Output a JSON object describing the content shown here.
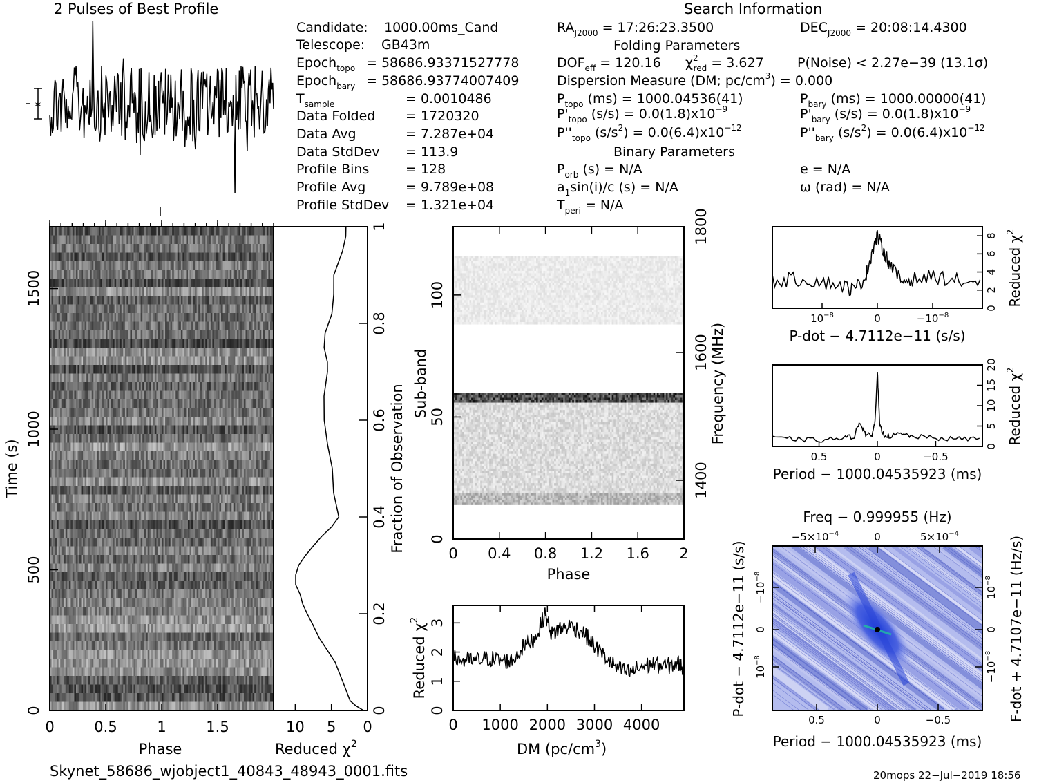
{
  "profile_panel": {
    "title": "2 Pulses of Best Profile"
  },
  "search_info": {
    "title": "Search Information",
    "folding_title": "Folding Parameters",
    "binary_title": "Binary Parameters"
  },
  "candidate_info": [
    {
      "label": "Candidate:",
      "value": "1000.00ms_Cand"
    },
    {
      "label": "Telescope:",
      "value": "GB43m"
    },
    {
      "label": "Epoch",
      "sub": "topo",
      "value": "= 58686.93371527778"
    },
    {
      "label": "Epoch",
      "sub": "bary",
      "value": "= 58686.93774007409"
    },
    {
      "label": "T",
      "sub": "sample",
      "value": "= 0.0010486"
    },
    {
      "label": "Data Folded",
      "value": "= 1720320"
    },
    {
      "label": "Data Avg",
      "value": "= 7.287e+04"
    },
    {
      "label": "Data StdDev",
      "value": "= 113.9"
    },
    {
      "label": "Profile Bins",
      "value": "= 128"
    },
    {
      "label": "Profile Avg",
      "value": "= 9.789e+08"
    },
    {
      "label": "Profile StdDev",
      "value": "= 1.321e+04"
    }
  ],
  "search_values": {
    "ra_label": "RA",
    "ra_sub": "J2000",
    "ra_value": "= 17:26:23.3500",
    "dec_label": "DEC",
    "dec_sub": "J2000",
    "dec_value": "= 20:08:14.4300",
    "dof_label": "DOF",
    "dof_sub": "eff",
    "dof_value": "= 120.16",
    "chi_label": "χ",
    "chi_sup": "2",
    "chi_sub": "red",
    "chi_value": "= 3.627",
    "pnoise": "P(Noise) < 2.27e−39   (13.1σ)",
    "dm_text": "Dispersion Measure (DM; pc/cm",
    "dm_sup": "3",
    "dm_value": ") = 0.000",
    "ptopo_label": "P",
    "ptopo_sub": "topo",
    "ptopo_value": "(ms) =  1000.04536(41)",
    "pbary_label": "P",
    "pbary_sub": "bary",
    "pbary_value": "(ms) =  1000.00000(41)",
    "pdtopo_label": "P'",
    "pdtopo_sub": "topo",
    "pdtopo_value": "(s/s) = 0.0(1.8)x10",
    "pdtopo_exp": "−9",
    "pdbary_label": "P'",
    "pdbary_sub": "bary",
    "pdbary_value": "(s/s) = 0.0(1.8)x10",
    "pdbary_exp": "−9",
    "pddtopo_label": "P''",
    "pddtopo_sub": "topo",
    "pddtopo_value": "(s/s",
    "pddtopo_sup": "2",
    "pddtopo_tail": ") = 0.0(6.4)x10",
    "pddtopo_exp": "−12",
    "pddbary_label": "P''",
    "pddbary_sub": "bary",
    "pddbary_value": "(s/s",
    "pddbary_sup": "2",
    "pddbary_tail": ") = 0.0(6.4)x10",
    "pddbary_exp": "−12",
    "porb_label": "P",
    "porb_sub": "orb",
    "porb_value": "(s) = N/A",
    "e_text": "e = N/A",
    "a1_text_a": "a",
    "a1_sub": "1",
    "a1_text_b": "sin(i)/c (s) = N/A",
    "omega_text": "ω (rad) = N/A",
    "tperi_label": "T",
    "tperi_sub": "peri",
    "tperi_value": "= N/A"
  },
  "time_phase": {
    "xlabel": "Phase",
    "ylabel": "Time (s)",
    "xticks": [
      "0",
      "0.5",
      "1",
      "1.5"
    ],
    "yticks": [
      "0",
      "500",
      "1000",
      "1500"
    ]
  },
  "chi_vs_time": {
    "xlabel": "Reduced χ",
    "xlabel_sup": "2",
    "xticks": [
      "10",
      "5",
      "0"
    ],
    "right_label": "Fraction of Observation",
    "right_ticks": [
      "0",
      "0.2",
      "0.4",
      "0.6",
      "0.8",
      "1"
    ]
  },
  "subband": {
    "xlabel": "Phase",
    "ylabel": "Sub-band",
    "right_label": "Frequency (MHz)",
    "xticks": [
      "0",
      "0.4",
      "0.8",
      "1.2",
      "1.6",
      "2"
    ],
    "yticks": [
      "0",
      "50",
      "100"
    ],
    "right_ticks": [
      "1400",
      "1600",
      "1800"
    ]
  },
  "dm_panel": {
    "xlabel": "DM (pc/cm",
    "xlabel_sup": "3",
    "xlabel_tail": ")",
    "ylabel": "Reduced χ",
    "ylabel_sup": "2",
    "xticks": [
      "0",
      "1000",
      "2000",
      "3000",
      "4000"
    ],
    "yticks": [
      "0",
      "1",
      "2",
      "3"
    ]
  },
  "pdot_panel": {
    "xlabel": "P-dot − 4.7112e−11 (s/s)",
    "ylabel": "Reduced χ",
    "ylabel_sup": "2",
    "xticks": [
      "10",
      "0",
      "−10"
    ],
    "xtick_exp": "−8",
    "yticks": [
      "0",
      "2",
      "4",
      "6",
      "8"
    ]
  },
  "period_panel": {
    "xlabel": "Period − 1000.04535923 (ms)",
    "ylabel": "Reduced χ",
    "ylabel_sup": "2",
    "xticks": [
      "0.5",
      "0",
      "−0.5"
    ],
    "yticks": [
      "0",
      "5",
      "10",
      "15",
      "20"
    ]
  },
  "ppdot_panel": {
    "top_label": "Freq − 0.999955 (Hz)",
    "top_ticks": [
      "−5×10",
      "0",
      "5×10"
    ],
    "top_exp": "−4",
    "xlabel": "Period − 1000.04535923 (ms)",
    "xticks": [
      "0.5",
      "0",
      "−0.5"
    ],
    "ylabel": "P-dot − 4.7112e−11 (s/s)",
    "right_label": "F-dot + 4.7107e−11 (Hz/s)",
    "yticks": [
      "10",
      "0",
      "−10"
    ],
    "ytick_exp": "−8"
  },
  "footer": {
    "filename": "Skynet_58686_wjobject1_40843_48943_0001.fits",
    "stamp": "20mops  22−Jul−2019 18:56"
  },
  "chart_data": [
    {
      "type": "heatmap",
      "title": "",
      "xlabel": "Phase",
      "ylabel": "Time (s)",
      "xlim": [
        0,
        2
      ],
      "ylim": [
        0,
        1720
      ],
      "dark_rows_time_s": [
        480,
        1450
      ],
      "colormap": "grayscale"
    },
    {
      "type": "line",
      "xlabel": "Reduced χ2",
      "ylabel": "Fraction of Observation",
      "xlim": [
        13,
        0
      ],
      "ylim": [
        0,
        1
      ],
      "x": [
        0.5,
        1.5,
        2.5,
        3.0,
        4.5,
        6.5,
        7.5,
        8.5,
        9.0,
        9.5,
        9.8,
        10.0,
        9.6,
        8.5,
        7.5,
        6.5,
        5.0,
        4.0,
        4.5,
        5.0,
        5.5,
        5.8,
        6.0,
        5.5,
        5.5,
        6.0,
        6.0,
        5.0,
        4.5,
        4.5,
        3.5,
        3.0,
        3.0
      ],
      "y": [
        0.0,
        0.01,
        0.02,
        0.05,
        0.1,
        0.15,
        0.18,
        0.2,
        0.22,
        0.24,
        0.26,
        0.28,
        0.3,
        0.32,
        0.34,
        0.36,
        0.38,
        0.4,
        0.45,
        0.5,
        0.55,
        0.6,
        0.65,
        0.7,
        0.72,
        0.75,
        0.78,
        0.82,
        0.86,
        0.9,
        0.95,
        0.98,
        1.0
      ]
    },
    {
      "type": "heatmap",
      "xlabel": "Phase",
      "ylabel": "Sub-band",
      "xlim": [
        0,
        2
      ],
      "ylim": [
        0,
        128
      ],
      "right_axis": {
        "label": "Frequency (MHz)",
        "ticks": [
          1400,
          1600,
          1800
        ]
      },
      "populated_subbands": [
        [
          14,
          59
        ],
        [
          88,
          115
        ]
      ],
      "colormap": "grayscale"
    },
    {
      "type": "line",
      "xlabel": "DM (pc/cm3)",
      "ylabel": "Reduced χ2",
      "xlim": [
        0,
        4900
      ],
      "ylim": [
        0,
        3.6
      ],
      "x": [
        0,
        250,
        500,
        750,
        1000,
        1250,
        1500,
        1750,
        1950,
        2100,
        2250,
        2500,
        2750,
        3000,
        3250,
        3500,
        3750,
        4000,
        4250,
        4500,
        4750,
        4900
      ],
      "y": [
        1.8,
        1.7,
        1.7,
        1.8,
        1.7,
        1.7,
        2.2,
        2.5,
        3.3,
        2.6,
        2.8,
        2.9,
        2.7,
        2.2,
        1.8,
        1.4,
        1.3,
        1.5,
        1.6,
        1.5,
        1.6,
        1.5
      ]
    },
    {
      "type": "line",
      "xlabel": "P-dot − 4.7112e−11 (s/s)",
      "ylabel": "Reduced χ2",
      "ylim": [
        0,
        9
      ],
      "x_units": "1e-8 s/s, axis reversed (10 on left, −10 on right)",
      "x": [
        18,
        14,
        10,
        6,
        4,
        2,
        1,
        0,
        -1,
        -2,
        -4,
        -6,
        -10,
        -14,
        -18
      ],
      "y": [
        3.0,
        3.2,
        3.0,
        2.5,
        2.0,
        3.5,
        6.0,
        8.0,
        6.5,
        5.0,
        3.0,
        3.2,
        3.5,
        3.0,
        2.8
      ]
    },
    {
      "type": "line",
      "xlabel": "Period − 1000.04535923 (ms)",
      "ylabel": "Reduced χ2",
      "xlim": [
        0.9,
        -0.9
      ],
      "ylim": [
        0,
        20
      ],
      "x": [
        0.9,
        0.7,
        0.5,
        0.3,
        0.2,
        0.15,
        0.1,
        0.05,
        0.02,
        0.0,
        -0.02,
        -0.05,
        -0.1,
        -0.2,
        -0.3,
        -0.5,
        -0.7,
        -0.9
      ],
      "y": [
        2.0,
        1.8,
        1.5,
        2.0,
        2.5,
        6.0,
        3.0,
        2.5,
        6.0,
        18.5,
        5.0,
        3.0,
        2.5,
        3.0,
        2.5,
        2.0,
        1.8,
        2.0
      ]
    },
    {
      "type": "heatmap",
      "xlabel": "Period − 1000.04535923 (ms)",
      "ylabel": "P-dot − 4.7112e−11 (s/s)",
      "xlim": [
        0.9,
        -0.9
      ],
      "peak": {
        "x": 0.0,
        "y": 0.0
      },
      "colormap": "blue-white"
    }
  ]
}
